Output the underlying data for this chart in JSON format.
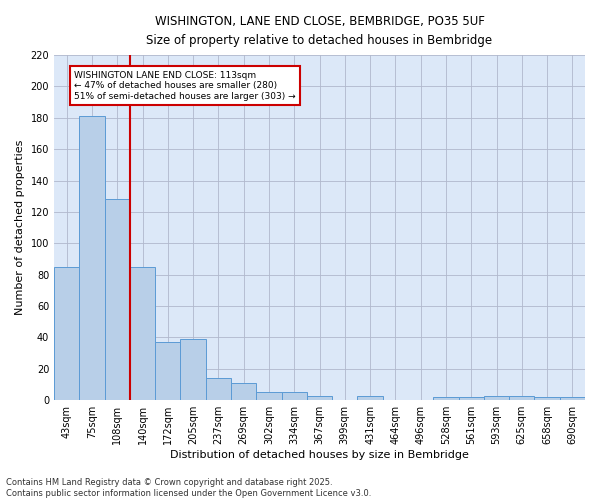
{
  "title1": "WISHINGTON, LANE END CLOSE, BEMBRIDGE, PO35 5UF",
  "title2": "Size of property relative to detached houses in Bembridge",
  "xlabel": "Distribution of detached houses by size in Bembridge",
  "ylabel": "Number of detached properties",
  "categories": [
    "43sqm",
    "75sqm",
    "108sqm",
    "140sqm",
    "172sqm",
    "205sqm",
    "237sqm",
    "269sqm",
    "302sqm",
    "334sqm",
    "367sqm",
    "399sqm",
    "431sqm",
    "464sqm",
    "496sqm",
    "528sqm",
    "561sqm",
    "593sqm",
    "625sqm",
    "658sqm",
    "690sqm"
  ],
  "values": [
    85,
    181,
    128,
    85,
    37,
    39,
    14,
    11,
    5,
    5,
    3,
    0,
    3,
    0,
    0,
    2,
    2,
    3,
    3,
    2,
    2
  ],
  "bar_color": "#b8cfe8",
  "bar_edge_color": "#5b9bd5",
  "vline_x_index": 2,
  "marker_label": "WISHINGTON LANE END CLOSE: 113sqm",
  "arrow_left_text": "← 47% of detached houses are smaller (280)",
  "arrow_right_text": "51% of semi-detached houses are larger (303) →",
  "annotation_box_color": "#ffffff",
  "annotation_box_edge": "#cc0000",
  "vline_color": "#cc0000",
  "background_color": "#dce8f8",
  "footer1": "Contains HM Land Registry data © Crown copyright and database right 2025.",
  "footer2": "Contains public sector information licensed under the Open Government Licence v3.0.",
  "ylim": [
    0,
    220
  ],
  "yticks": [
    0,
    20,
    40,
    60,
    80,
    100,
    120,
    140,
    160,
    180,
    200,
    220
  ]
}
